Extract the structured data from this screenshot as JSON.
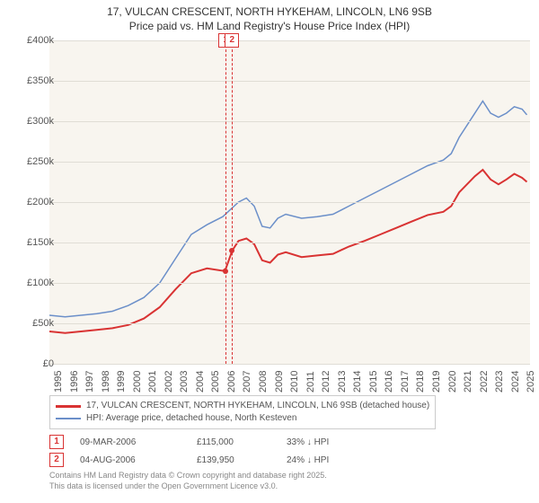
{
  "title_line1": "17, VULCAN CRESCENT, NORTH HYKEHAM, LINCOLN, LN6 9SB",
  "title_line2": "Price paid vs. HM Land Registry's House Price Index (HPI)",
  "chart": {
    "type": "line",
    "background_color": "#f8f5ef",
    "grid_color": "#e0ddd5",
    "x_years": [
      1995,
      1996,
      1997,
      1998,
      1999,
      2000,
      2001,
      2002,
      2003,
      2004,
      2005,
      2006,
      2007,
      2008,
      2009,
      2010,
      2011,
      2012,
      2013,
      2014,
      2015,
      2016,
      2017,
      2018,
      2019,
      2020,
      2021,
      2022,
      2023,
      2024,
      2025
    ],
    "x_min": 1995,
    "x_max": 2025.5,
    "y_min": 0,
    "y_max": 400000,
    "y_ticks": [
      0,
      50000,
      100000,
      150000,
      200000,
      250000,
      300000,
      350000,
      400000
    ],
    "y_tick_labels": [
      "£0",
      "£50k",
      "£100k",
      "£150k",
      "£200k",
      "£250k",
      "£300k",
      "£350k",
      "£400k"
    ],
    "series": [
      {
        "name": "hpi",
        "color": "#6b8fc9",
        "width": 1.5,
        "data": [
          [
            1995,
            60000
          ],
          [
            1996,
            58000
          ],
          [
            1997,
            60000
          ],
          [
            1998,
            62000
          ],
          [
            1999,
            65000
          ],
          [
            2000,
            72000
          ],
          [
            2001,
            82000
          ],
          [
            2002,
            100000
          ],
          [
            2003,
            130000
          ],
          [
            2004,
            160000
          ],
          [
            2005,
            172000
          ],
          [
            2006,
            182000
          ],
          [
            2007,
            200000
          ],
          [
            2007.5,
            205000
          ],
          [
            2008,
            195000
          ],
          [
            2008.5,
            170000
          ],
          [
            2009,
            168000
          ],
          [
            2009.5,
            180000
          ],
          [
            2010,
            185000
          ],
          [
            2011,
            180000
          ],
          [
            2012,
            182000
          ],
          [
            2013,
            185000
          ],
          [
            2014,
            195000
          ],
          [
            2015,
            205000
          ],
          [
            2016,
            215000
          ],
          [
            2017,
            225000
          ],
          [
            2018,
            235000
          ],
          [
            2019,
            245000
          ],
          [
            2020,
            252000
          ],
          [
            2020.5,
            260000
          ],
          [
            2021,
            280000
          ],
          [
            2022,
            310000
          ],
          [
            2022.5,
            325000
          ],
          [
            2023,
            310000
          ],
          [
            2023.5,
            305000
          ],
          [
            2024,
            310000
          ],
          [
            2024.5,
            318000
          ],
          [
            2025,
            315000
          ],
          [
            2025.3,
            308000
          ]
        ]
      },
      {
        "name": "price_paid",
        "color": "#d93333",
        "width": 2,
        "data": [
          [
            1995,
            40000
          ],
          [
            1996,
            38000
          ],
          [
            1997,
            40000
          ],
          [
            1998,
            42000
          ],
          [
            1999,
            44000
          ],
          [
            2000,
            48000
          ],
          [
            2001,
            56000
          ],
          [
            2002,
            70000
          ],
          [
            2003,
            92000
          ],
          [
            2004,
            112000
          ],
          [
            2005,
            118000
          ],
          [
            2006,
            115000
          ],
          [
            2006.2,
            118000
          ],
          [
            2006.6,
            139950
          ],
          [
            2007,
            152000
          ],
          [
            2007.5,
            155000
          ],
          [
            2008,
            148000
          ],
          [
            2008.5,
            128000
          ],
          [
            2009,
            125000
          ],
          [
            2009.5,
            135000
          ],
          [
            2010,
            138000
          ],
          [
            2011,
            132000
          ],
          [
            2012,
            134000
          ],
          [
            2013,
            136000
          ],
          [
            2014,
            145000
          ],
          [
            2015,
            152000
          ],
          [
            2016,
            160000
          ],
          [
            2017,
            168000
          ],
          [
            2018,
            176000
          ],
          [
            2019,
            184000
          ],
          [
            2020,
            188000
          ],
          [
            2020.5,
            195000
          ],
          [
            2021,
            212000
          ],
          [
            2022,
            232000
          ],
          [
            2022.5,
            240000
          ],
          [
            2023,
            228000
          ],
          [
            2023.5,
            222000
          ],
          [
            2024,
            228000
          ],
          [
            2024.5,
            235000
          ],
          [
            2025,
            230000
          ],
          [
            2025.3,
            225000
          ]
        ]
      }
    ],
    "markers": [
      {
        "x": 2006.18,
        "label": "1",
        "price_y": 115000
      },
      {
        "x": 2006.59,
        "label": "2",
        "price_y": 139950
      }
    ]
  },
  "legend": {
    "series1_label": "17, VULCAN CRESCENT, NORTH HYKEHAM, LINCOLN, LN6 9SB (detached house)",
    "series1_color": "#d93333",
    "series2_label": "HPI: Average price, detached house, North Kesteven",
    "series2_color": "#6b8fc9"
  },
  "events": [
    {
      "n": "1",
      "date": "09-MAR-2006",
      "price": "£115,000",
      "pct": "33% ↓ HPI"
    },
    {
      "n": "2",
      "date": "04-AUG-2006",
      "price": "£139,950",
      "pct": "24% ↓ HPI"
    }
  ],
  "footer_line1": "Contains HM Land Registry data © Crown copyright and database right 2025.",
  "footer_line2": "This data is licensed under the Open Government Licence v3.0."
}
